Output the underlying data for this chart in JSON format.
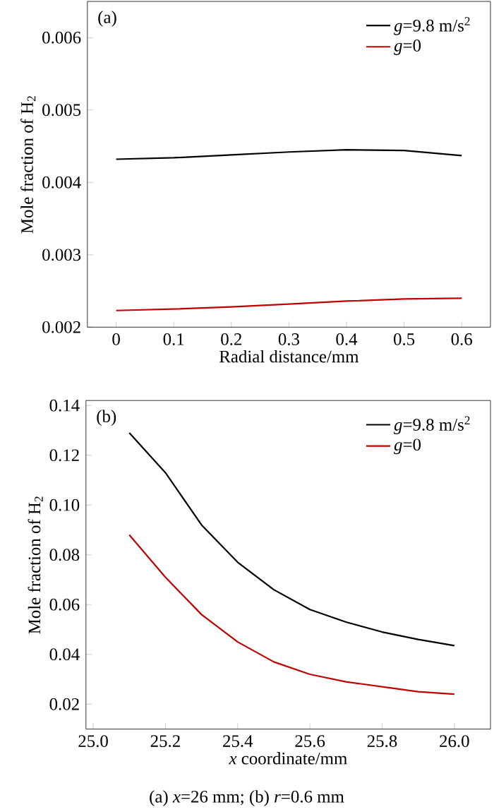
{
  "chart_data": [
    {
      "type": "line",
      "annotations": [
        "(a)"
      ],
      "xlabel": "Radial distance/mm",
      "ylabel": "Mole fraction of H$_{2}$",
      "legend": "top right",
      "marker": "none",
      "xlim": [
        -0.05,
        0.65
      ],
      "ylim": [
        0.002,
        0.0065
      ],
      "xticks": [
        0,
        0.1,
        0.2,
        0.3,
        0.4,
        0.5,
        0.6
      ],
      "yticks": [
        0.002,
        0.003,
        0.004,
        0.005,
        0.006
      ],
      "x": [
        0,
        0.1,
        0.2,
        0.3,
        0.4,
        0.5,
        0.6
      ],
      "series": [
        {
          "name": "*g*=9.8 m/s$^{2}$",
          "color": "#000000",
          "values": [
            0.00432,
            0.00434,
            0.00438,
            0.00442,
            0.00445,
            0.00444,
            0.00437
          ]
        },
        {
          "name": "*g*=0",
          "color": "#c00000",
          "values": [
            0.00223,
            0.00225,
            0.00228,
            0.00232,
            0.00236,
            0.00239,
            0.0024
          ]
        }
      ]
    },
    {
      "type": "line",
      "annotations": [
        "(b)",
        "(a) *x*=26 mm; (b) *r*=0.6 mm"
      ],
      "xlabel": "*x* coordinate/mm",
      "ylabel": "Mole fraction of H$_{2}$",
      "legend": "top right",
      "marker": "none",
      "xlim": [
        24.98,
        26.1
      ],
      "ylim": [
        0.01,
        0.142
      ],
      "xticks": [
        {
          "value": 25,
          "label": "25.0"
        },
        25.2,
        25.4,
        25.6,
        25.8,
        {
          "value": 26,
          "label": "26.0"
        }
      ],
      "yticks": [
        0.02,
        0.04,
        0.06,
        0.08,
        {
          "value": 0.1,
          "label": "0.10"
        },
        0.12,
        0.14
      ],
      "x": [
        25.1,
        25.2,
        25.3,
        25.4,
        25.5,
        25.6,
        25.7,
        25.8,
        25.9,
        26.0
      ],
      "series": [
        {
          "name": "*g*=9.8 m/s$^{2}$",
          "color": "#000000",
          "values": [
            0.129,
            0.113,
            0.092,
            0.077,
            0.066,
            0.058,
            0.053,
            0.049,
            0.046,
            0.0435
          ]
        },
        {
          "name": "*g*=0",
          "color": "#c00000",
          "values": [
            0.088,
            0.071,
            0.056,
            0.045,
            0.037,
            0.032,
            0.029,
            0.027,
            0.025,
            0.024
          ]
        }
      ]
    }
  ]
}
